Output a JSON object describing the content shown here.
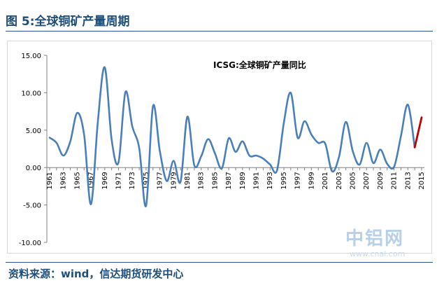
{
  "title": "图 5:全球铜矿产量周期",
  "source": "资料来源：wind，信达期货研发中心",
  "watermark": {
    "text": "中铝网",
    "url": "www.cnal.com"
  },
  "colors": {
    "series": "#4a7fba",
    "highlight": "#c00000",
    "title": "#1f4e79",
    "axis": "#808080"
  },
  "chart_data": {
    "type": "line",
    "title": "ICSG:全球铜矿产量同比",
    "xlabel": "",
    "ylabel": "",
    "ylim": [
      -10,
      15
    ],
    "yticks": [
      "15.00",
      "10.00",
      "5.00",
      "0.00",
      "-5.00",
      "-10.00"
    ],
    "ytick_values": [
      15,
      10,
      5,
      0,
      -5,
      -10
    ],
    "xticks": [
      "1961",
      "1963",
      "1965",
      "1967",
      "1969",
      "1971",
      "1973",
      "1975",
      "1977",
      "1979",
      "1981",
      "1983",
      "1985",
      "1987",
      "1989",
      "1991",
      "1993",
      "1995",
      "1997",
      "1999",
      "2001",
      "2003",
      "2005",
      "2007",
      "2009",
      "2011",
      "2013",
      "2015"
    ],
    "x": [
      1961,
      1962,
      1963,
      1964,
      1965,
      1966,
      1967,
      1968,
      1969,
      1970,
      1971,
      1972,
      1973,
      1974,
      1975,
      1976,
      1977,
      1978,
      1979,
      1980,
      1981,
      1982,
      1983,
      1984,
      1985,
      1986,
      1987,
      1988,
      1989,
      1990,
      1991,
      1992,
      1993,
      1994,
      1995,
      1996,
      1997,
      1998,
      1999,
      2000,
      2001,
      2002,
      2003,
      2004,
      2005,
      2006,
      2007,
      2008,
      2009,
      2010,
      2011,
      2012,
      2013,
      2014,
      2015
    ],
    "series": [
      {
        "values": [
          4.0,
          3.3,
          1.6,
          3.5,
          7.3,
          4.4,
          -4.9,
          6.2,
          13.4,
          3.7,
          0.7,
          10.1,
          5.5,
          2.6,
          -5.1,
          8.2,
          2.2,
          -1.8,
          0.9,
          -1.9,
          6.8,
          0.3,
          1.5,
          3.8,
          1.9,
          -0.1,
          3.9,
          2.1,
          3.5,
          1.6,
          1.6,
          1.2,
          0.4,
          -0.4,
          6.0,
          10.0,
          4.0,
          6.2,
          4.4,
          3.3,
          3.2,
          -0.5,
          1.4,
          6.1,
          2.2,
          0.4,
          3.3,
          0.6,
          2.4,
          0.5,
          0.1,
          4.2,
          8.4,
          2.7,
          6.7
        ]
      }
    ],
    "highlight_segment": {
      "x": [
        2014,
        2015
      ],
      "values": [
        2.7,
        6.7
      ]
    },
    "grid": false,
    "legend": "none"
  }
}
